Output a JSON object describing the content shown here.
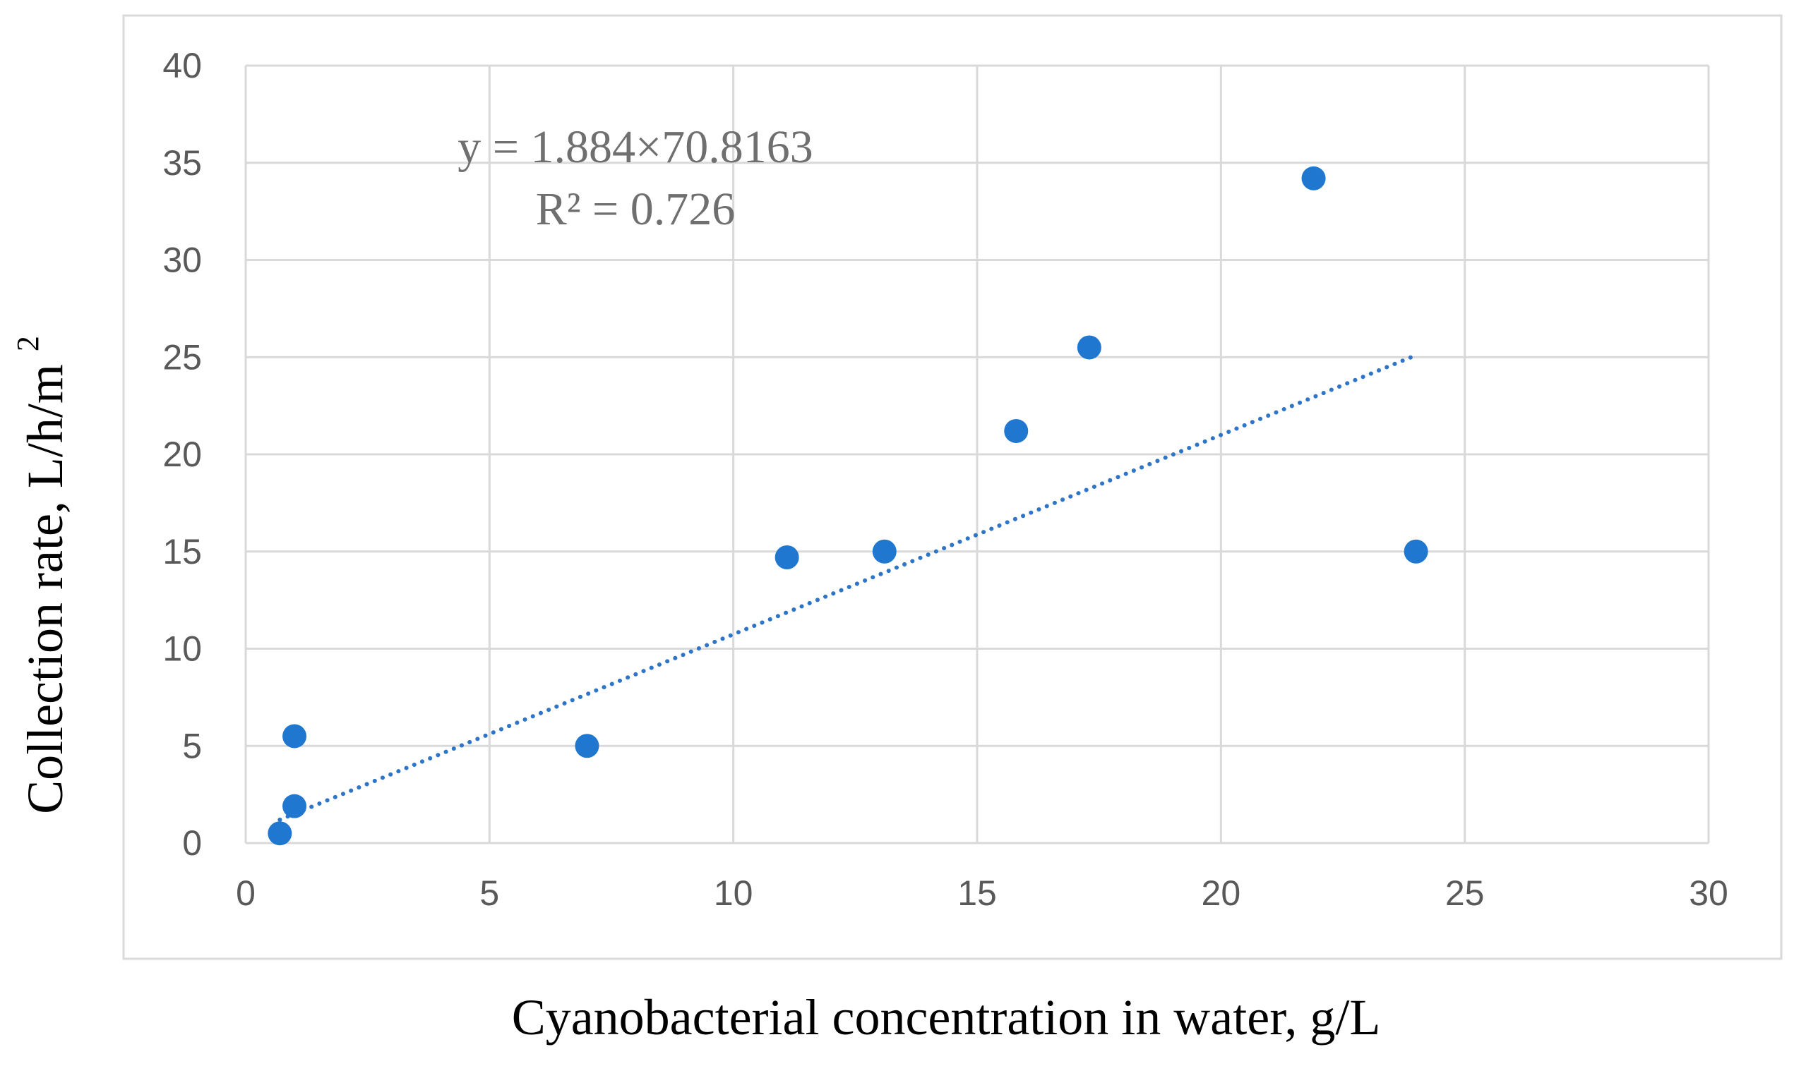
{
  "chart_data": {
    "type": "scatter",
    "xlabel": "Cyanobacterial concentration in water, g/L",
    "ylabel": "Collection rate, L/h/m",
    "ylabel_superscript": "2",
    "xlim": [
      0,
      30
    ],
    "ylim": [
      0,
      40
    ],
    "x_ticks": [
      0,
      5,
      10,
      15,
      20,
      25,
      30
    ],
    "y_ticks": [
      0,
      5,
      10,
      15,
      20,
      25,
      30,
      35,
      40
    ],
    "grid": true,
    "series": [
      {
        "name": "data",
        "color": "#1f77d0",
        "x": [
          0.7,
          1.0,
          1.0,
          7.0,
          11.1,
          13.1,
          15.8,
          17.3,
          21.9,
          24.0
        ],
        "y": [
          0.5,
          1.9,
          5.5,
          5.0,
          14.7,
          15.0,
          21.2,
          25.5,
          34.2,
          15.0
        ]
      }
    ],
    "trendline": {
      "type": "linear",
      "color": "#2e75c8",
      "x": [
        0.7,
        24.0
      ],
      "y": [
        1.2,
        25.1
      ]
    },
    "annotations": {
      "equation": "y = 1.884×70.8163",
      "r_squared": "R² = 0.726"
    }
  }
}
